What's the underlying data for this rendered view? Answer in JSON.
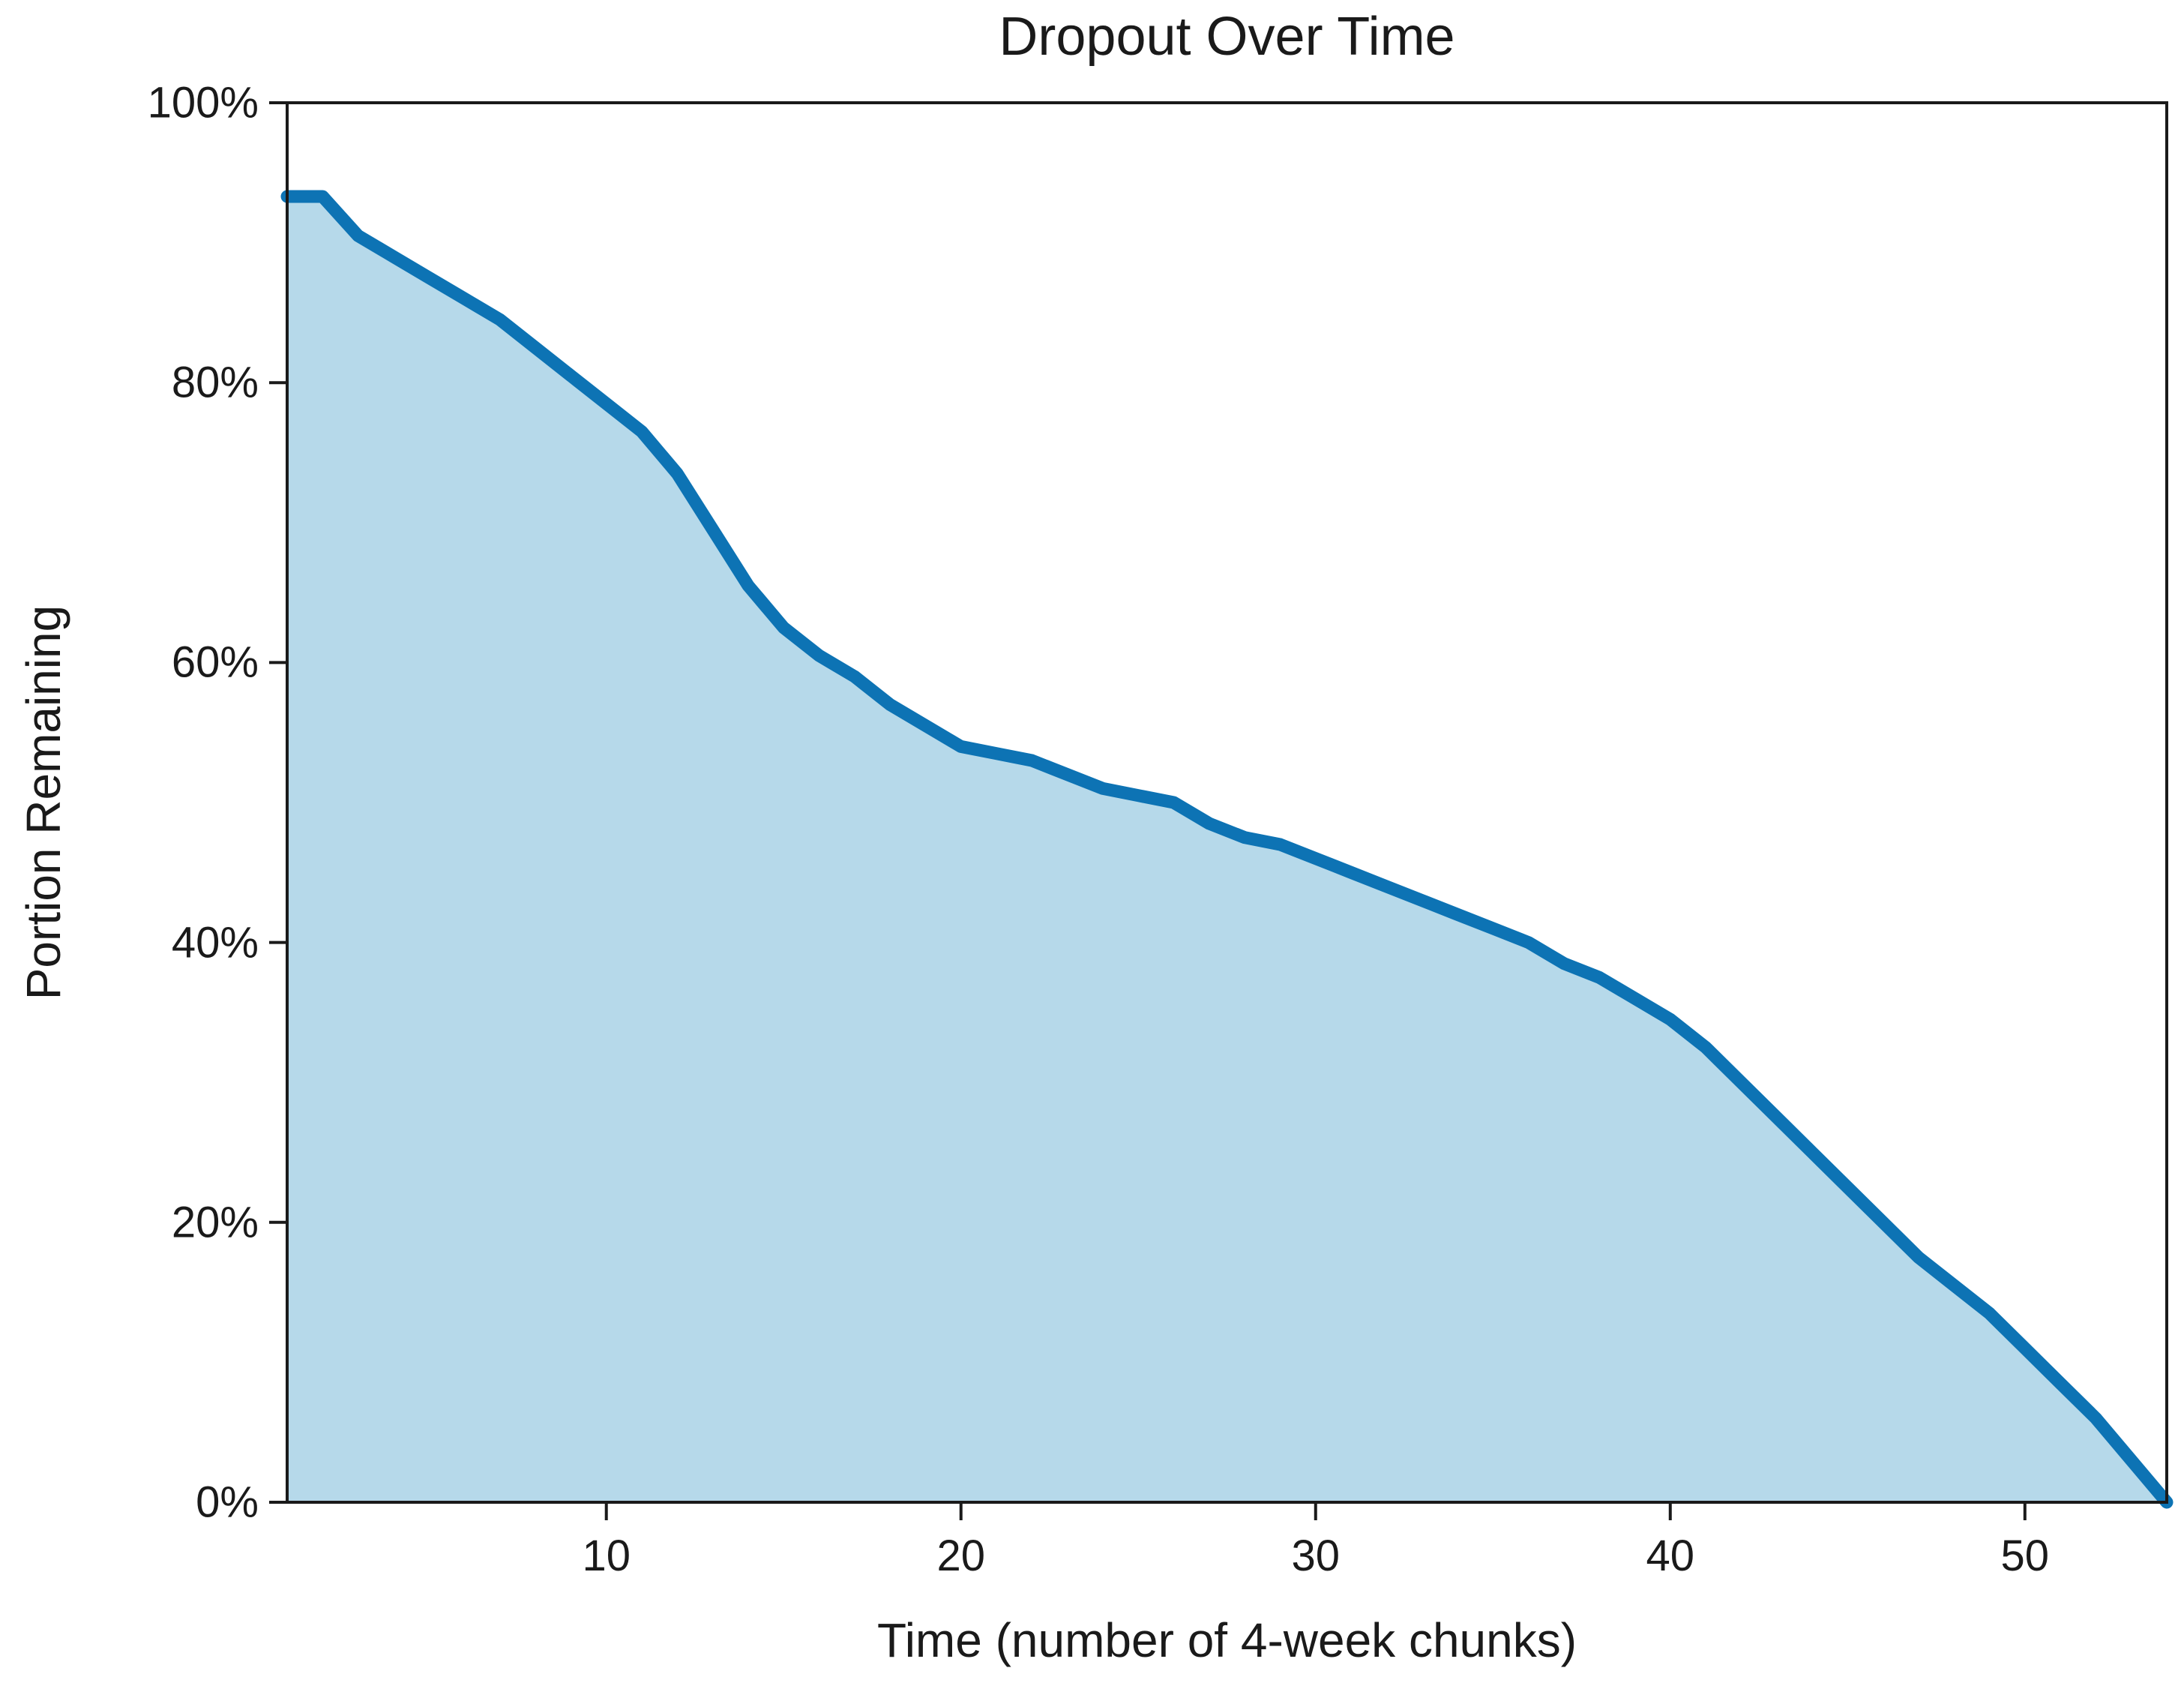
{
  "chart_data": {
    "type": "area",
    "title": "Dropout Over Time",
    "xlabel": "Time (number of 4-week chunks)",
    "ylabel": "Portion Remaining",
    "xlim": [
      1,
      54
    ],
    "ylim": [
      0,
      100
    ],
    "grid": false,
    "legend": "none",
    "x_ticks": [
      10,
      20,
      30,
      40,
      50
    ],
    "y_ticks": [
      0,
      20,
      40,
      60,
      80,
      100
    ],
    "y_tick_labels": [
      "0%",
      "20%",
      "40%",
      "60%",
      "80%",
      "100%"
    ],
    "series": [
      {
        "name": "portion_remaining",
        "x": [
          1,
          2,
          3,
          4,
          5,
          6,
          7,
          8,
          9,
          10,
          11,
          12,
          13,
          14,
          15,
          16,
          17,
          18,
          19,
          20,
          21,
          22,
          23,
          24,
          25,
          26,
          27,
          28,
          29,
          30,
          31,
          32,
          33,
          34,
          35,
          36,
          37,
          38,
          39,
          40,
          41,
          42,
          43,
          44,
          45,
          46,
          47,
          48,
          49,
          50,
          51,
          52,
          53,
          54
        ],
        "values": [
          93.3,
          93.3,
          90.5,
          89,
          87.5,
          86,
          84.5,
          82.5,
          80.5,
          78.5,
          76.5,
          73.5,
          69.5,
          65.5,
          62.5,
          60.5,
          59,
          57,
          55.5,
          54,
          53.5,
          53,
          52,
          51,
          50.5,
          50,
          48.5,
          47.5,
          47,
          46,
          45,
          44,
          43,
          42,
          41,
          40,
          38.5,
          37.5,
          36,
          34.5,
          32.5,
          30,
          27.5,
          25,
          22.5,
          20,
          17.5,
          15.5,
          13.5,
          11,
          8.5,
          6,
          3,
          0
        ]
      }
    ],
    "colors": {
      "line": "#0d73b4",
      "fill": "#b6d9ea",
      "axis": "#1a1a1a",
      "background": "#ffffff"
    }
  }
}
